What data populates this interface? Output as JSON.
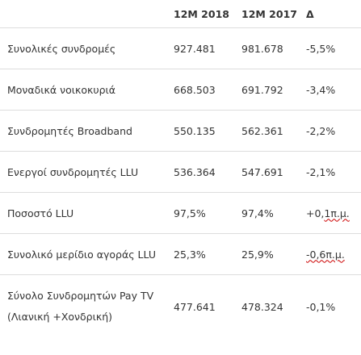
{
  "headers": [
    "",
    "12M 2018",
    "12M 2017",
    "Δ"
  ],
  "rows": [
    {
      "label": "Συνολικές συνδρομές",
      "y2018": "927.481",
      "y2017": "981.678",
      "delta": "-5,5%"
    },
    {
      "label": "Μοναδικά νοικοκυριά",
      "y2018": "668.503",
      "y2017": "691.792",
      "delta": "-3,4%"
    },
    {
      "label": "Συνδρομητές Broadband",
      "y2018": "550.135",
      "y2017": "562.361",
      "delta": "-2,2%"
    },
    {
      "label": "Ενεργοί συνδρομητές LLU",
      "y2018": "536.364",
      "y2017": "547.691",
      "delta": "-2,1%"
    },
    {
      "label": "Ποσοστό LLU",
      "y2018": "97,5%",
      "y2017": "97,4%",
      "delta_prefix": "+0,",
      "delta_marked": "1π.μ."
    },
    {
      "label": "Συνολικό μερίδιο αγοράς LLU",
      "y2018": "25,3%",
      "y2017": "25,9%",
      "delta_marked": "-0,6π.μ."
    },
    {
      "label_line1": "Σύνολο Συνδρομητών Pay TV",
      "label_line2": "(Λιανική +Χονδρική)",
      "y2018": "477.641",
      "y2017": "478.324",
      "delta": "-0,1%"
    }
  ]
}
